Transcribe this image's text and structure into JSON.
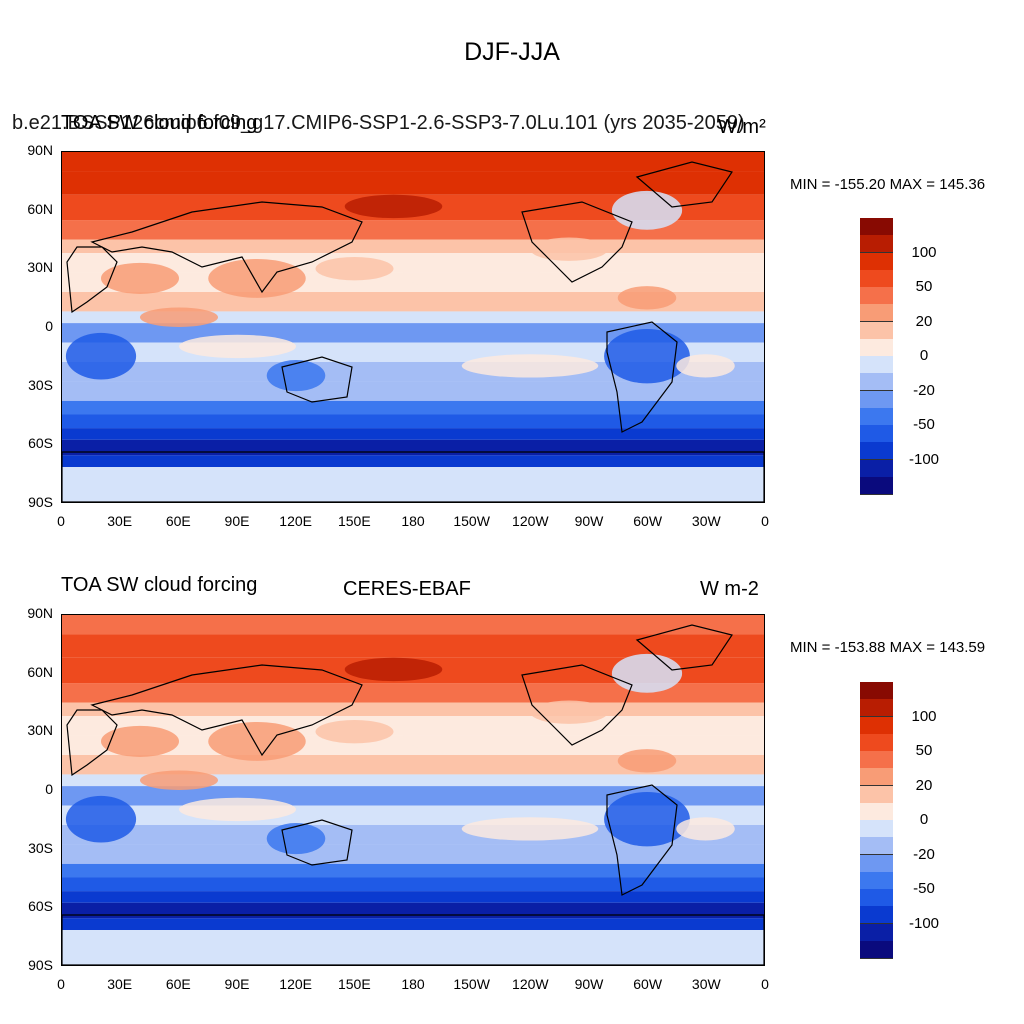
{
  "figure": {
    "title": "DJF-JJA"
  },
  "colors": {
    "scale": [
      "#0a0a7d",
      "#0a1fa6",
      "#0a3ad0",
      "#1f5ae6",
      "#3c78ef",
      "#6e98f2",
      "#a4bdf5",
      "#d5e3fa",
      "#fdeadf",
      "#fcc3a8",
      "#f89c76",
      "#f5704a",
      "#ee4a1e",
      "#de3003",
      "#b81d02",
      "#880a02"
    ],
    "land": "#ffffff",
    "coast": "#000000"
  },
  "panels": [
    {
      "id": "model",
      "title_left": "TOA SW cloud forcing",
      "title_center": "b.e21.BSSP126cmip6.f09_g17.CMIP6-SSP1-2.6-SSP3-7.0Lu.101 (yrs 2035-2059)",
      "title_right": "W/m²",
      "stats": "MIN = -155.20 MAX = 145.36"
    },
    {
      "id": "obs",
      "title_left": "TOA SW cloud forcing",
      "title_center": "CERES-EBAF",
      "title_right": "W m-2",
      "stats": "MIN = -153.88 MAX = 143.59"
    }
  ],
  "axes": {
    "lat_labels": [
      "90N",
      "60N",
      "30N",
      "0",
      "30S",
      "60S",
      "90S"
    ],
    "lon_labels": [
      "0",
      "30E",
      "60E",
      "90E",
      "120E",
      "150E",
      "180",
      "150W",
      "120W",
      "90W",
      "60W",
      "30W",
      "0"
    ]
  },
  "colorbar": {
    "labels": [
      "100",
      "50",
      "20",
      "0",
      "-20",
      "-50",
      "-100"
    ]
  }
}
